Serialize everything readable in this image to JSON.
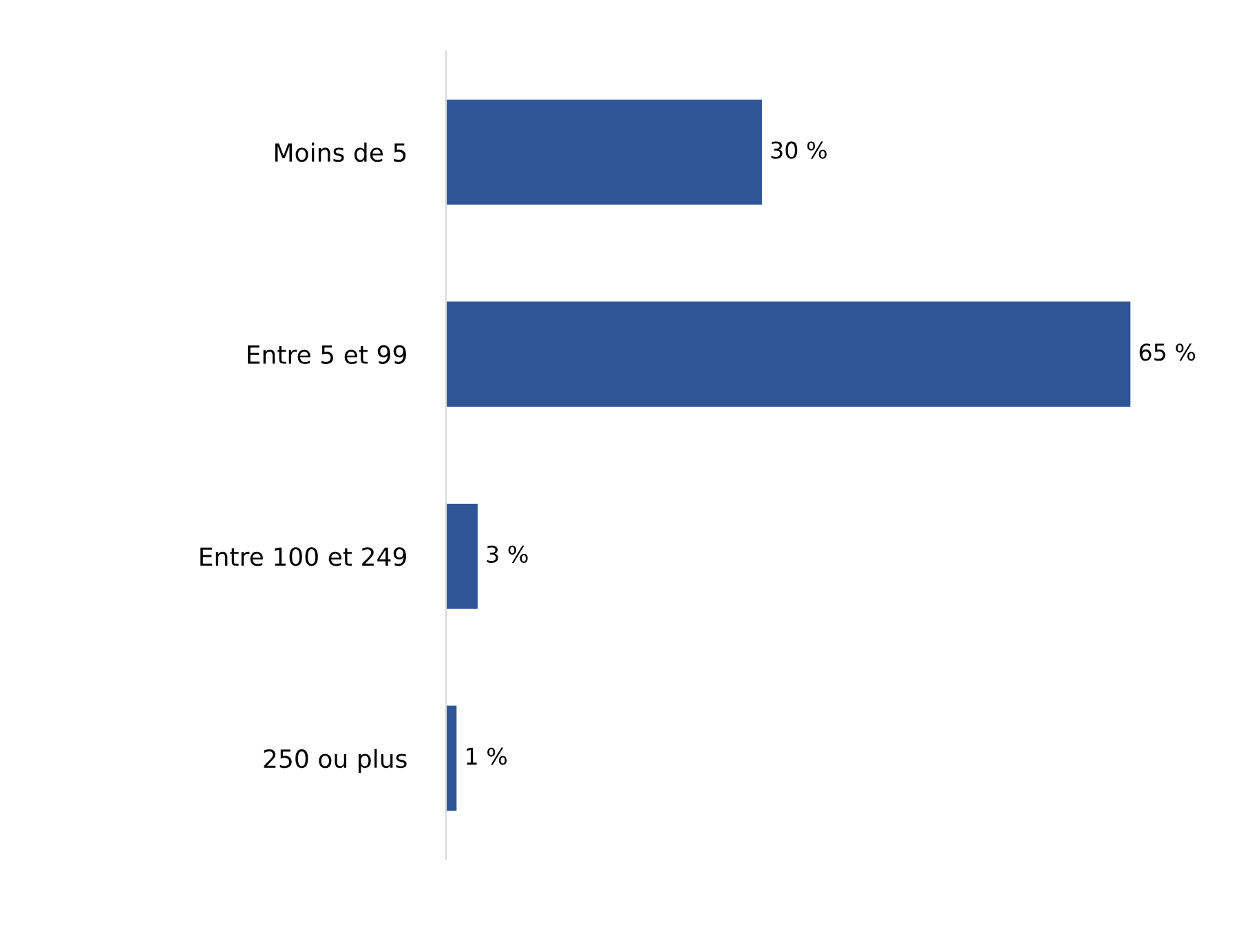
{
  "chart_data": {
    "type": "bar",
    "orientation": "horizontal",
    "categories": [
      "Moins de 5",
      "Entre 5 et 99",
      "Entre 100 et 249",
      "250 ou plus"
    ],
    "values": [
      30,
      65,
      3,
      1
    ],
    "value_labels": [
      "30 %",
      "65 %",
      "3 %",
      "1 %"
    ],
    "color": "#2f5597",
    "grid": false,
    "legend": false
  }
}
